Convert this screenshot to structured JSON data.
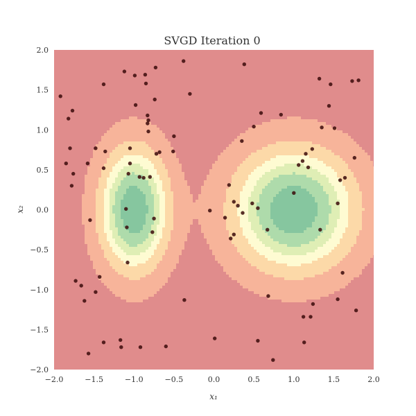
{
  "chart_data": {
    "type": "scatter",
    "title": "SVGD Iteration 0",
    "xlabel": "x₁",
    "ylabel": "x₂",
    "xlim": [
      -2.0,
      2.0
    ],
    "ylim": [
      -2.0,
      2.0
    ],
    "x_ticks": [
      -2.0,
      -1.5,
      -1.0,
      -0.5,
      0.0,
      0.5,
      1.0,
      1.5,
      2.0
    ],
    "x_tick_labels": [
      "−2.0",
      "−1.5",
      "−1.0",
      "−0.5",
      "0.0",
      "0.5",
      "1.0",
      "1.5",
      "2.0"
    ],
    "y_ticks": [
      -2.0,
      -1.5,
      -1.0,
      -0.5,
      0.0,
      0.5,
      1.0,
      1.5,
      2.0
    ],
    "y_tick_labels": [
      "−2.0",
      "−1.5",
      "−1.0",
      "−0.5",
      "0.0",
      "0.5",
      "1.0",
      "1.5",
      "2.0"
    ],
    "grid": false,
    "background_color": "#e08c8c",
    "contour_colors": [
      "#f7b49a",
      "#fcd9a8",
      "#fefbd2",
      "#dfeeb5",
      "#aedbab",
      "#86c69f"
    ],
    "point_color": "#3b0a0a",
    "density": {
      "components": [
        {
          "mean": [
            -1.0,
            0.0
          ],
          "sigma": [
            0.28,
            0.5
          ],
          "weight": 1.0
        },
        {
          "mean": [
            1.0,
            0.0
          ],
          "sigma": [
            0.5,
            0.5
          ],
          "weight": 1.0
        }
      ],
      "levels": [
        0.07,
        0.22,
        0.38,
        0.52,
        0.66,
        0.84
      ]
    },
    "points": [
      [
        -1.92,
        1.42
      ],
      [
        -1.82,
        1.14
      ],
      [
        -1.77,
        1.24
      ],
      [
        -1.8,
        0.77
      ],
      [
        -1.85,
        0.58
      ],
      [
        -1.76,
        0.45
      ],
      [
        -1.78,
        0.3
      ],
      [
        -1.58,
        0.58
      ],
      [
        -1.55,
        -0.13
      ],
      [
        -1.48,
        0.77
      ],
      [
        -1.38,
        0.52
      ],
      [
        -1.36,
        0.73
      ],
      [
        -1.38,
        1.57
      ],
      [
        -1.12,
        1.73
      ],
      [
        -0.99,
        1.68
      ],
      [
        -0.86,
        1.69
      ],
      [
        -0.73,
        1.78
      ],
      [
        -0.85,
        1.58
      ],
      [
        -0.98,
        1.31
      ],
      [
        -0.83,
        1.18
      ],
      [
        -0.82,
        1.12
      ],
      [
        -0.83,
        1.08
      ],
      [
        -0.82,
        0.98
      ],
      [
        -0.74,
        1.38
      ],
      [
        -0.38,
        1.86
      ],
      [
        -0.3,
        1.45
      ],
      [
        -0.5,
        0.92
      ],
      [
        -0.51,
        0.73
      ],
      [
        -0.68,
        0.72
      ],
      [
        -0.72,
        0.7
      ],
      [
        -1.05,
        0.77
      ],
      [
        -1.05,
        0.58
      ],
      [
        -1.07,
        0.45
      ],
      [
        -0.93,
        0.41
      ],
      [
        -0.88,
        0.4
      ],
      [
        -0.8,
        0.41
      ],
      [
        -1.1,
        0.01
      ],
      [
        -1.09,
        -0.22
      ],
      [
        -1.08,
        -0.66
      ],
      [
        -0.75,
        -0.11
      ],
      [
        -0.77,
        -0.28
      ],
      [
        -1.43,
        -0.84
      ],
      [
        -1.48,
        -1.03
      ],
      [
        -1.66,
        -0.95
      ],
      [
        -1.73,
        -0.89
      ],
      [
        -1.62,
        -1.14
      ],
      [
        -1.38,
        -1.66
      ],
      [
        -1.17,
        -1.63
      ],
      [
        -1.16,
        -1.72
      ],
      [
        -1.57,
        -1.8
      ],
      [
        -0.92,
        -1.72
      ],
      [
        -0.6,
        -1.71
      ],
      [
        -0.37,
        -1.13
      ],
      [
        -0.05,
        -0.01
      ],
      [
        0.01,
        -1.61
      ],
      [
        0.38,
        1.82
      ],
      [
        0.35,
        0.86
      ],
      [
        0.5,
        1.04
      ],
      [
        0.59,
        1.21
      ],
      [
        0.84,
        1.19
      ],
      [
        0.19,
        0.31
      ],
      [
        0.25,
        0.1
      ],
      [
        0.3,
        0.05
      ],
      [
        0.36,
        -0.04
      ],
      [
        0.48,
        0.08
      ],
      [
        0.55,
        0.02
      ],
      [
        0.14,
        -0.1
      ],
      [
        0.21,
        -0.36
      ],
      [
        0.25,
        -0.31
      ],
      [
        0.67,
        -0.25
      ],
      [
        0.55,
        -1.64
      ],
      [
        0.68,
        -1.08
      ],
      [
        0.74,
        -1.88
      ],
      [
        1.0,
        0.21
      ],
      [
        1.06,
        0.56
      ],
      [
        1.11,
        0.61
      ],
      [
        1.15,
        0.7
      ],
      [
        1.18,
        0.53
      ],
      [
        1.23,
        0.76
      ],
      [
        1.12,
        -1.34
      ],
      [
        1.21,
        -1.34
      ],
      [
        1.24,
        -1.18
      ],
      [
        1.13,
        -1.66
      ],
      [
        1.33,
        -0.25
      ],
      [
        1.32,
        1.64
      ],
      [
        1.44,
        1.3
      ],
      [
        1.46,
        1.57
      ],
      [
        1.35,
        1.03
      ],
      [
        1.51,
        1.02
      ],
      [
        1.55,
        0.08
      ],
      [
        1.58,
        0.37
      ],
      [
        1.61,
        -0.79
      ],
      [
        1.64,
        0.4
      ],
      [
        1.55,
        -1.12
      ],
      [
        1.73,
        1.61
      ],
      [
        1.81,
        1.62
      ],
      [
        1.76,
        0.65
      ],
      [
        1.78,
        -1.26
      ]
    ]
  }
}
